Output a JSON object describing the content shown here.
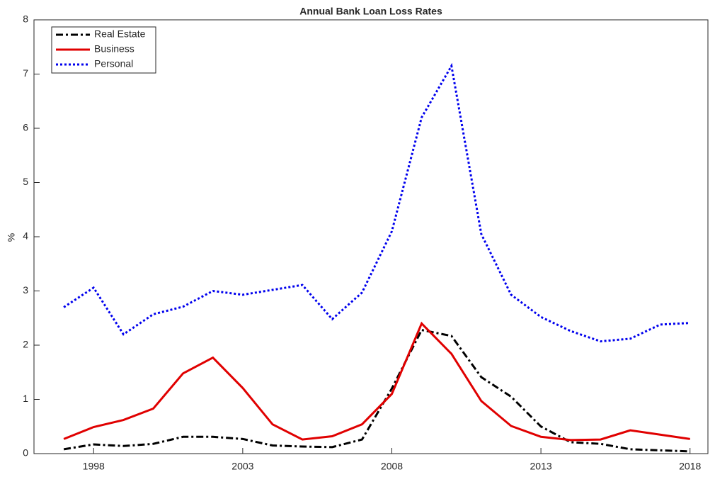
{
  "chart_data": {
    "type": "line",
    "title": "Annual Bank Loan Loss Rates",
    "y_label": "%",
    "x": [
      1997,
      1998,
      1999,
      2000,
      2001,
      2002,
      2003,
      2004,
      2005,
      2006,
      2007,
      2008,
      2009,
      2010,
      2011,
      2012,
      2013,
      2014,
      2015,
      2016,
      2017,
      2018
    ],
    "series": [
      {
        "name": "Real Estate",
        "color": "#000000",
        "style": "dashdot",
        "values": [
          0.08,
          0.17,
          0.14,
          0.18,
          0.31,
          0.31,
          0.27,
          0.15,
          0.13,
          0.12,
          0.26,
          1.2,
          2.28,
          2.17,
          1.41,
          1.05,
          0.5,
          0.21,
          0.18,
          0.08,
          0.06,
          0.04
        ]
      },
      {
        "name": "Business",
        "color": "#e00000",
        "style": "solid",
        "values": [
          0.27,
          0.49,
          0.62,
          0.83,
          1.48,
          1.77,
          1.21,
          0.54,
          0.26,
          0.32,
          0.54,
          1.1,
          2.4,
          1.84,
          0.97,
          0.51,
          0.31,
          0.25,
          0.26,
          0.43,
          0.35,
          0.27
        ]
      },
      {
        "name": "Personal",
        "color": "#0000ee",
        "style": "dotted",
        "values": [
          2.7,
          3.06,
          2.2,
          2.57,
          2.71,
          3.0,
          2.93,
          3.02,
          3.11,
          2.48,
          2.97,
          4.1,
          6.2,
          7.15,
          4.05,
          2.93,
          2.52,
          2.26,
          2.07,
          2.12,
          2.38,
          2.41
        ]
      }
    ],
    "xlim": [
      1996,
      2018.6
    ],
    "xticks": [
      1998,
      2003,
      2008,
      2013,
      2018
    ],
    "ylim": [
      0,
      8
    ],
    "yticks": [
      0,
      1,
      2,
      3,
      4,
      5,
      6,
      7,
      8
    ],
    "legend": "northwest",
    "grid": false
  }
}
